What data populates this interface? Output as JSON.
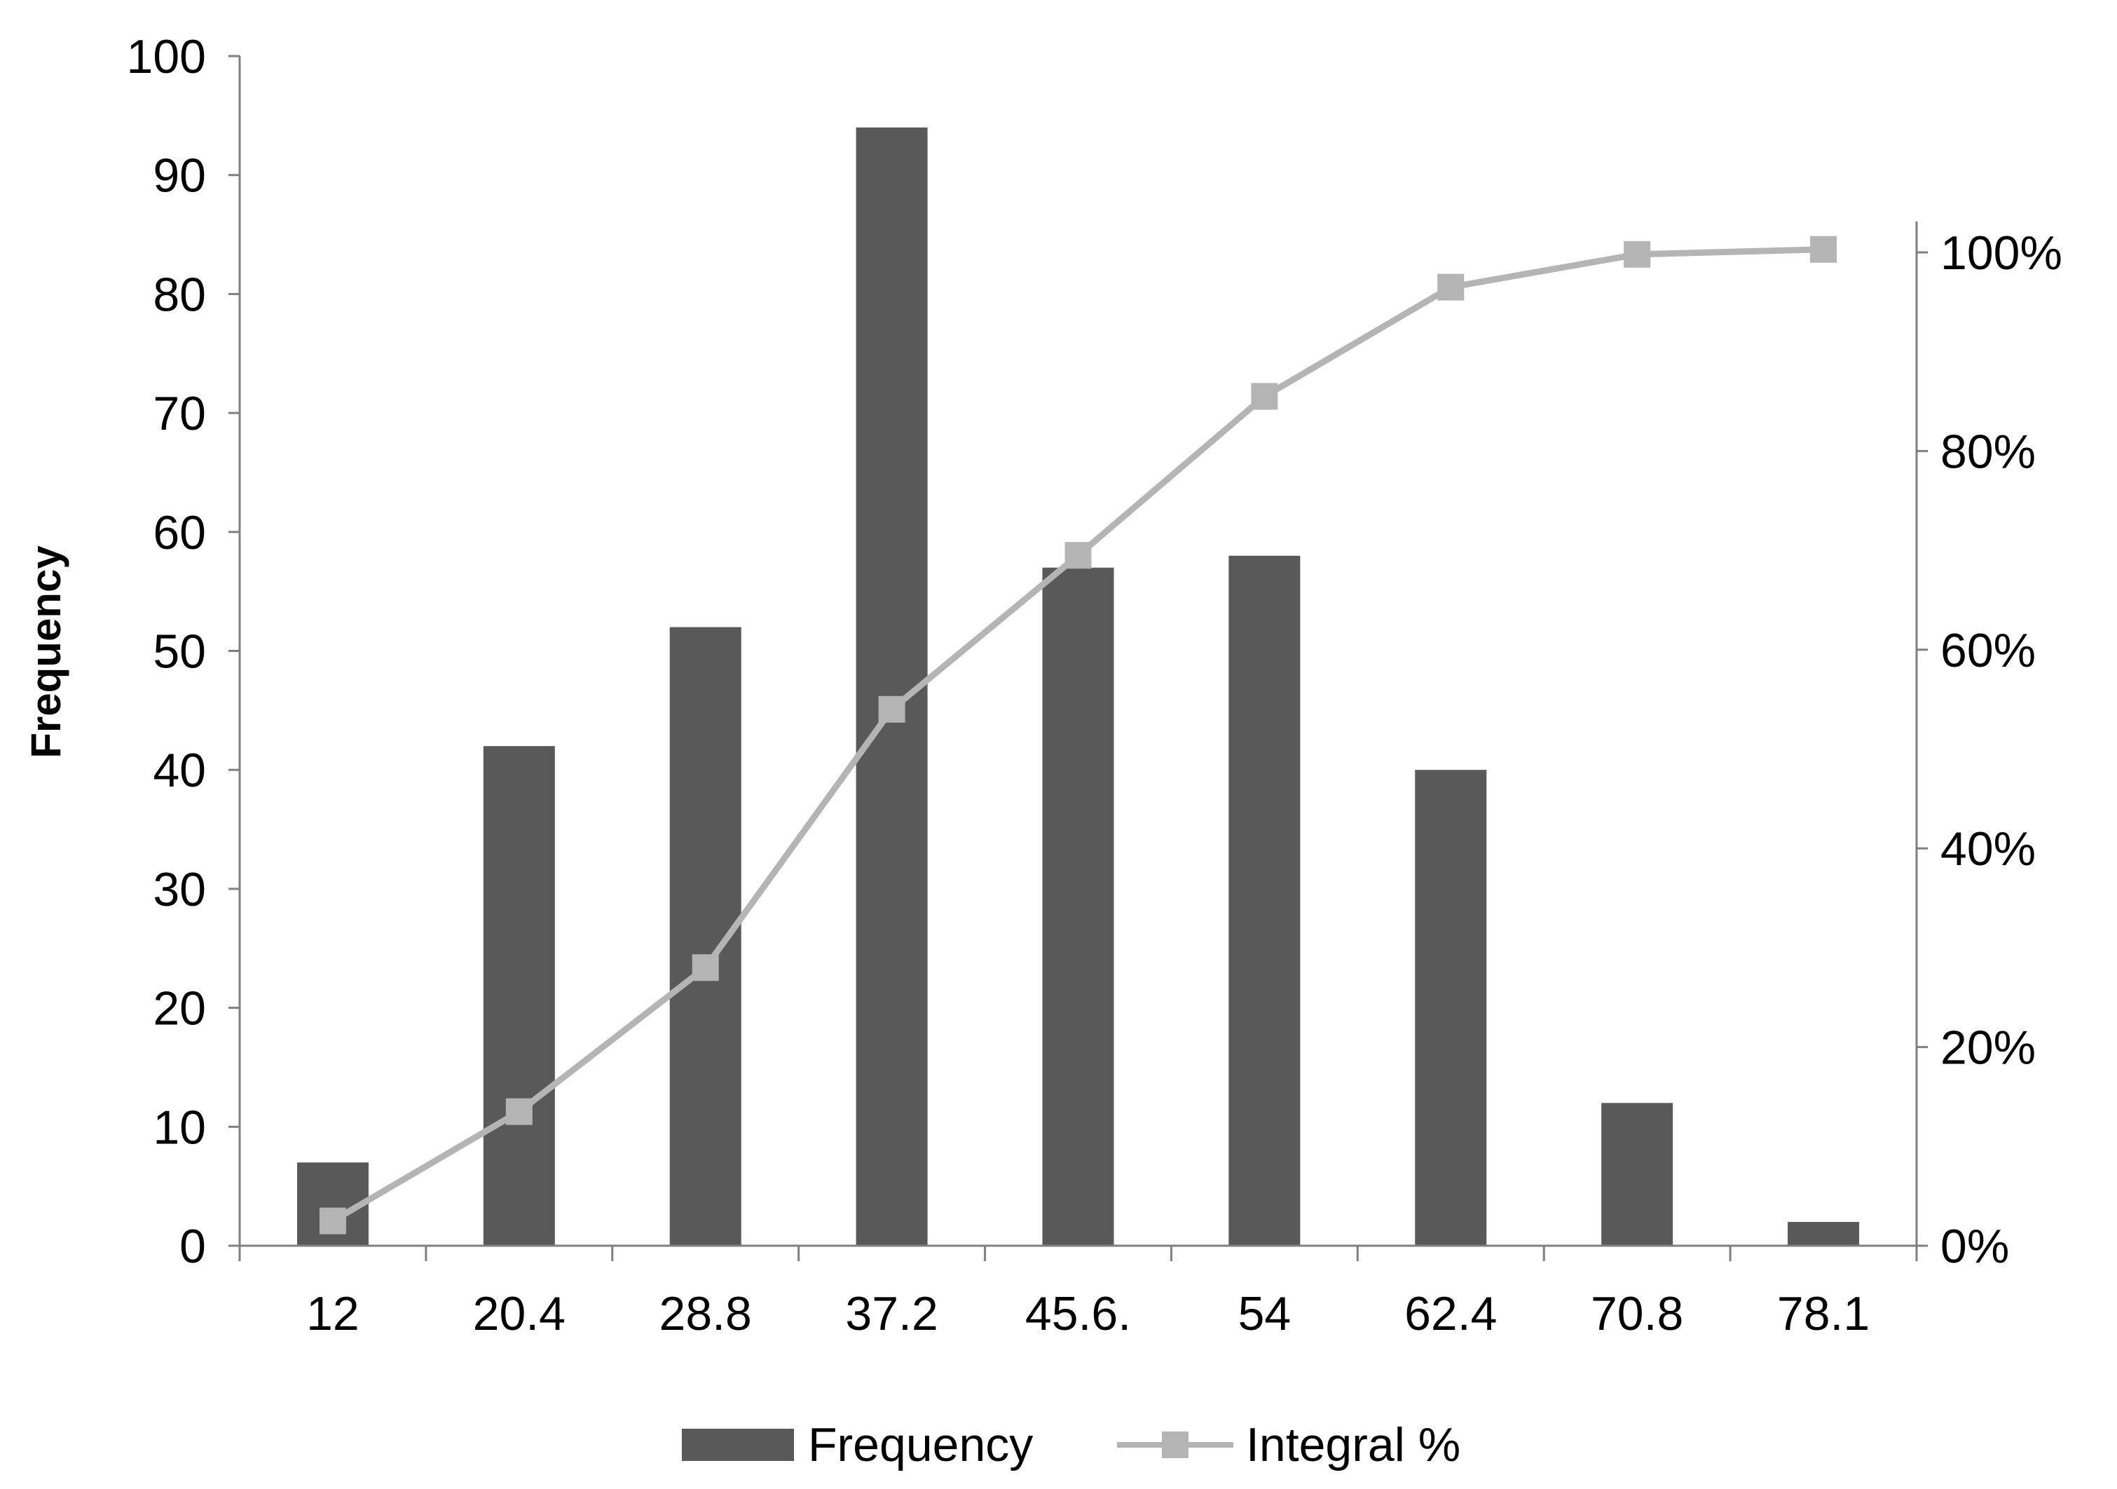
{
  "chart_data": {
    "type": "bar",
    "categories": [
      "12",
      "20.4",
      "28.8",
      "37.2",
      "45.6.",
      "54",
      "62.4",
      "70.8",
      "78.1"
    ],
    "series": [
      {
        "name": "Frequency",
        "type": "bar",
        "axis": "left",
        "color": "#595959",
        "values": [
          7,
          42,
          52,
          94,
          57,
          58,
          40,
          12,
          2
        ]
      },
      {
        "name": "Integral %",
        "type": "line",
        "axis": "right",
        "color": "#b4b4b4",
        "marker": "square",
        "values": [
          2.5,
          13.5,
          28,
          54,
          69.5,
          85.5,
          96.5,
          99.8,
          100.3
        ]
      }
    ],
    "ylabel": "Frequency",
    "xlabel": "",
    "ylim": [
      0,
      100
    ],
    "yticks": [
      "0",
      "10",
      "20",
      "30",
      "40",
      "50",
      "60",
      "70",
      "80",
      "90",
      "100"
    ],
    "y2lim": [
      0,
      100
    ],
    "y2ticks": [
      "0%",
      "20%",
      "40%",
      "60%",
      "80%",
      "100%"
    ],
    "grid": false,
    "legend": "bottom"
  }
}
